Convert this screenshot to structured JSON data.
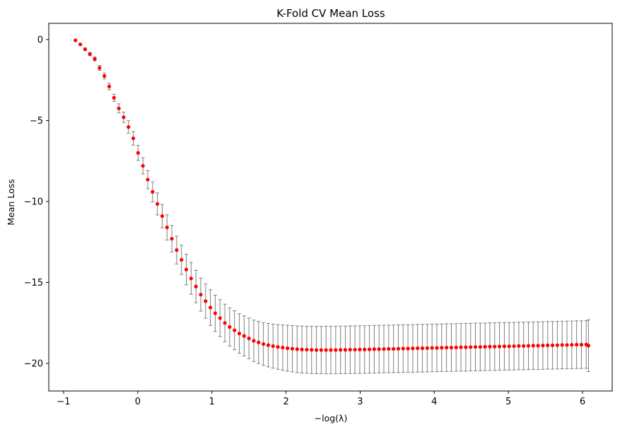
{
  "chart_data": {
    "type": "scatter",
    "title": "K-Fold CV Mean Loss",
    "xlabel": "−log(λ)",
    "ylabel": "Mean Loss",
    "xlim": [
      -1.2,
      6.4
    ],
    "ylim": [
      -21.7,
      1.0
    ],
    "xticks": [
      -1,
      0,
      1,
      2,
      3,
      4,
      5,
      6
    ],
    "xtick_labels": [
      "−1",
      "0",
      "1",
      "2",
      "3",
      "4",
      "5",
      "6"
    ],
    "yticks": [
      0,
      -5,
      -10,
      -15,
      -20
    ],
    "ytick_labels": [
      "0",
      "−5",
      "−10",
      "−15",
      "−20"
    ],
    "grid": false,
    "marker_color": "#ff0000",
    "errorbar_color": "#808080",
    "series": [
      {
        "x": [
          -0.84,
          -0.775,
          -0.71,
          -0.645,
          -0.58,
          -0.515,
          -0.45,
          -0.385,
          -0.32,
          -0.255,
          -0.19,
          -0.125,
          -0.06,
          0.005,
          0.07,
          0.135,
          0.2,
          0.265,
          0.33,
          0.395,
          0.46,
          0.525,
          0.59,
          0.655,
          0.72,
          0.785,
          0.85,
          0.915,
          0.98,
          1.045,
          1.11,
          1.175,
          1.24,
          1.305,
          1.37,
          1.435,
          1.5,
          1.565,
          1.63,
          1.695,
          1.76,
          1.825,
          1.89,
          1.955,
          2.02,
          2.085,
          2.15,
          2.215,
          2.28,
          2.345,
          2.41,
          2.475,
          2.54,
          2.605,
          2.67,
          2.735,
          2.8,
          2.865,
          2.93,
          2.995,
          3.06,
          3.125,
          3.19,
          3.255,
          3.32,
          3.385,
          3.45,
          3.515,
          3.58,
          3.645,
          3.71,
          3.775,
          3.84,
          3.905,
          3.97,
          4.035,
          4.1,
          4.165,
          4.23,
          4.295,
          4.36,
          4.425,
          4.49,
          4.555,
          4.62,
          4.685,
          4.75,
          4.815,
          4.88,
          4.945,
          5.01,
          5.075,
          5.14,
          5.205,
          5.27,
          5.335,
          5.4,
          5.465,
          5.53,
          5.595,
          5.66,
          5.725,
          5.79,
          5.855,
          5.92,
          5.985,
          6.05,
          6.08
        ],
        "y": [
          -0.05,
          -0.3,
          -0.6,
          -0.9,
          -1.2,
          -1.75,
          -2.25,
          -2.9,
          -3.6,
          -4.25,
          -4.8,
          -5.4,
          -6.1,
          -7.0,
          -7.8,
          -8.65,
          -9.4,
          -10.15,
          -10.9,
          -11.6,
          -12.3,
          -13.0,
          -13.6,
          -14.2,
          -14.75,
          -15.25,
          -15.75,
          -16.15,
          -16.55,
          -16.9,
          -17.2,
          -17.5,
          -17.75,
          -17.95,
          -18.15,
          -18.3,
          -18.45,
          -18.6,
          -18.7,
          -18.8,
          -18.87,
          -18.93,
          -18.98,
          -19.02,
          -19.06,
          -19.09,
          -19.12,
          -19.14,
          -19.15,
          -19.16,
          -19.17,
          -19.17,
          -19.17,
          -19.17,
          -19.17,
          -19.16,
          -19.16,
          -19.15,
          -19.15,
          -19.14,
          -19.14,
          -19.13,
          -19.12,
          -19.12,
          -19.11,
          -19.1,
          -19.1,
          -19.09,
          -19.08,
          -19.08,
          -19.07,
          -19.06,
          -19.06,
          -19.05,
          -19.04,
          -19.04,
          -19.03,
          -19.02,
          -19.02,
          -19.01,
          -19.0,
          -19.0,
          -18.99,
          -18.98,
          -18.98,
          -18.97,
          -18.96,
          -18.96,
          -18.95,
          -18.94,
          -18.94,
          -18.93,
          -18.92,
          -18.92,
          -18.91,
          -18.9,
          -18.9,
          -18.89,
          -18.88,
          -18.88,
          -18.87,
          -18.86,
          -18.86,
          -18.85,
          -18.84,
          -18.84,
          -18.83,
          -18.9
        ],
        "err": [
          0.05,
          0.06,
          0.08,
          0.1,
          0.12,
          0.15,
          0.18,
          0.2,
          0.22,
          0.28,
          0.32,
          0.38,
          0.42,
          0.46,
          0.5,
          0.56,
          0.62,
          0.68,
          0.72,
          0.78,
          0.82,
          0.86,
          0.9,
          0.94,
          0.98,
          1.0,
          1.02,
          1.06,
          1.1,
          1.12,
          1.14,
          1.16,
          1.18,
          1.2,
          1.22,
          1.24,
          1.26,
          1.28,
          1.3,
          1.32,
          1.34,
          1.36,
          1.38,
          1.4,
          1.42,
          1.43,
          1.44,
          1.45,
          1.45,
          1.46,
          1.46,
          1.46,
          1.47,
          1.47,
          1.47,
          1.47,
          1.47,
          1.47,
          1.47,
          1.47,
          1.47,
          1.47,
          1.47,
          1.47,
          1.47,
          1.47,
          1.47,
          1.47,
          1.47,
          1.47,
          1.47,
          1.47,
          1.47,
          1.47,
          1.47,
          1.47,
          1.47,
          1.47,
          1.47,
          1.47,
          1.47,
          1.47,
          1.47,
          1.47,
          1.47,
          1.47,
          1.47,
          1.47,
          1.47,
          1.47,
          1.47,
          1.47,
          1.47,
          1.47,
          1.47,
          1.47,
          1.47,
          1.47,
          1.47,
          1.47,
          1.47,
          1.47,
          1.47,
          1.47,
          1.47,
          1.47,
          1.47,
          1.6
        ]
      }
    ]
  }
}
